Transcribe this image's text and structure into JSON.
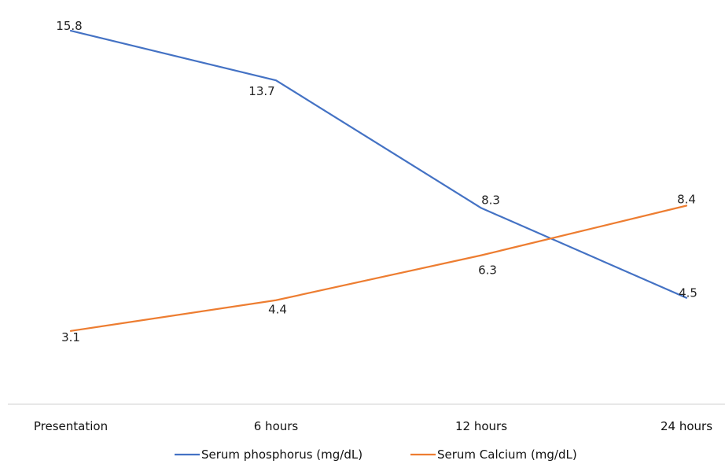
{
  "chart_data": {
    "type": "line",
    "categories": [
      "Presentation",
      "6 hours",
      "12 hours",
      "24 hours"
    ],
    "series": [
      {
        "name": "Serum phosphorus (mg/dL)",
        "color": "#4472C4",
        "values": [
          15.8,
          13.7,
          8.3,
          4.5
        ]
      },
      {
        "name": "Serum Calcium (mg/dL)",
        "color": "#ED7D31",
        "values": [
          3.1,
          4.4,
          6.3,
          8.4
        ]
      }
    ],
    "title": "",
    "xlabel": "",
    "ylabel": "",
    "ylim": [
      0,
      17
    ],
    "grid": false,
    "legend": "bottom",
    "axis_line_color": "#D9D9D9"
  }
}
